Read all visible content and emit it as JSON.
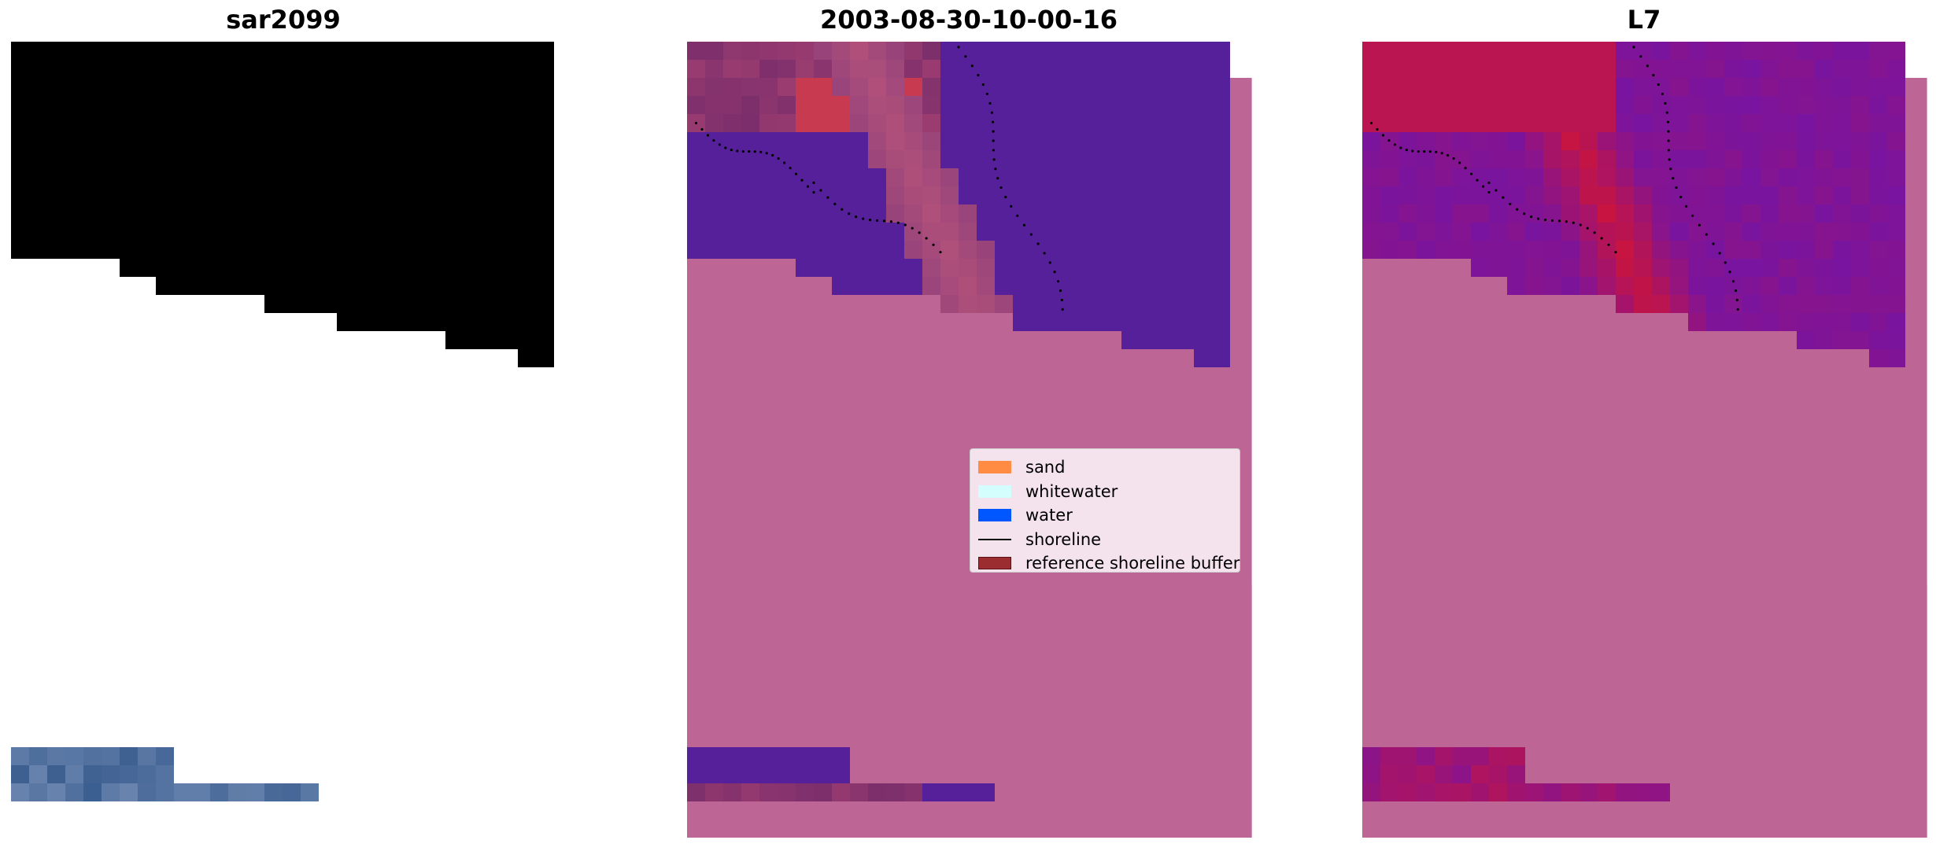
{
  "figure": {
    "panels": [
      {
        "id": "rgb",
        "title": "sar2099"
      },
      {
        "id": "classification",
        "title": "2003-08-30-10-00-16"
      },
      {
        "id": "mndwi",
        "title": "L7"
      }
    ]
  },
  "legend": {
    "items": [
      {
        "label": "sand",
        "kind": "patch",
        "color": "#ff8c42"
      },
      {
        "label": "whitewater",
        "kind": "patch",
        "color": "#d4fdfe"
      },
      {
        "label": "water",
        "kind": "patch",
        "color": "#0057ff"
      },
      {
        "label": "shoreline",
        "kind": "line",
        "color": "#000000"
      },
      {
        "label": "reference shoreline buffer",
        "kind": "patch",
        "color": "#9b2d30",
        "edge": "#5c1214"
      }
    ]
  },
  "colors": {
    "water_class": "#55209a",
    "buffer_overlay": "#bd6696",
    "sand_in_buffer": "#c83a4f",
    "ocean_rgb": "#3a5d8f",
    "whitewater_rgb": "#dfe3f1",
    "mndwi_high": "#c81440",
    "mndwi_low": "#6a14b0"
  }
}
